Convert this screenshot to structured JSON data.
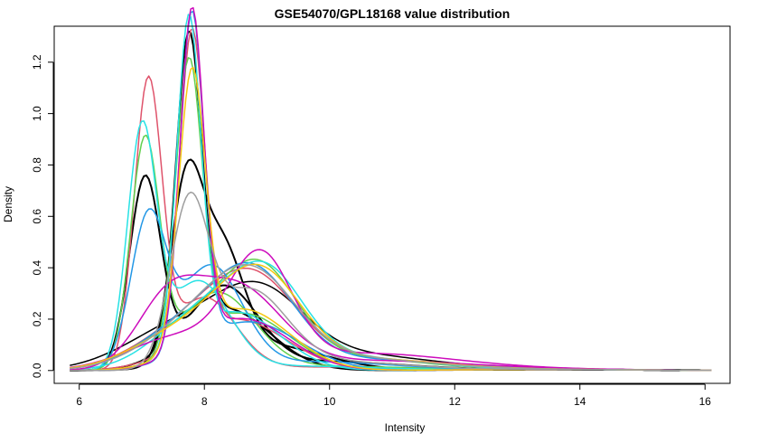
{
  "chart_data": {
    "type": "line",
    "title": "GSE54070/GPL18168 value distribution",
    "xlabel": "Intensity",
    "ylabel": "Density",
    "xlim": [
      5.6,
      16.4
    ],
    "ylim": [
      -0.05,
      1.34
    ],
    "xticks": [
      6,
      8,
      10,
      12,
      14,
      16
    ],
    "yticks": [
      0.0,
      0.2,
      0.4,
      0.6,
      0.8,
      1.0,
      1.2
    ],
    "x_range": [
      5.85,
      16.1
    ],
    "grid": false,
    "legend": "none",
    "palette": [
      "#000000",
      "#DF536B",
      "#61D04F",
      "#2297E6",
      "#28E2E5",
      "#CD0BBC",
      "#F5C710",
      "#9E9E9E"
    ],
    "series": [
      {
        "color": "#000000",
        "line_width": 2,
        "components": [
          {
            "w": 0.58,
            "mu": 7.75,
            "sd": 0.2
          },
          {
            "w": 0.42,
            "mu": 8.35,
            "sd": 0.7
          }
        ]
      },
      {
        "color": "#000000",
        "line_width": 2,
        "components": [
          {
            "w": 0.46,
            "mu": 7.05,
            "sd": 0.25
          },
          {
            "w": 0.44,
            "mu": 8.3,
            "sd": 0.55
          },
          {
            "w": 0.1,
            "mu": 10.0,
            "sd": 1.2
          }
        ]
      },
      {
        "color": "#000000",
        "line_width": 2,
        "components": [
          {
            "w": 0.4,
            "mu": 7.7,
            "sd": 0.25
          },
          {
            "w": 0.38,
            "mu": 8.25,
            "sd": 0.35
          },
          {
            "w": 0.22,
            "mu": 9.0,
            "sd": 0.9
          }
        ]
      },
      {
        "color": "#000000",
        "line_width": 1.5,
        "components": [
          {
            "w": 0.35,
            "mu": 7.6,
            "sd": 0.85
          },
          {
            "w": 0.45,
            "mu": 8.9,
            "sd": 0.7
          },
          {
            "w": 0.2,
            "mu": 10.3,
            "sd": 1.3
          }
        ]
      },
      {
        "color": "#DF536B",
        "line_width": 1.5,
        "components": [
          {
            "w": 0.6,
            "mu": 7.1,
            "sd": 0.22
          },
          {
            "w": 0.35,
            "mu": 8.0,
            "sd": 0.5
          },
          {
            "w": 0.05,
            "mu": 10.0,
            "sd": 1.5
          }
        ]
      },
      {
        "color": "#DF536B",
        "line_width": 1.5,
        "components": [
          {
            "w": 0.6,
            "mu": 7.8,
            "sd": 0.2
          },
          {
            "w": 0.4,
            "mu": 8.5,
            "sd": 0.8
          }
        ]
      },
      {
        "color": "#DF536B",
        "line_width": 1.5,
        "components": [
          {
            "w": 0.3,
            "mu": 7.7,
            "sd": 0.8
          },
          {
            "w": 0.55,
            "mu": 8.8,
            "sd": 0.7
          },
          {
            "w": 0.15,
            "mu": 10.5,
            "sd": 1.4
          }
        ]
      },
      {
        "color": "#61D04F",
        "line_width": 1.5,
        "components": [
          {
            "w": 0.5,
            "mu": 7.05,
            "sd": 0.23
          },
          {
            "w": 0.45,
            "mu": 8.2,
            "sd": 0.6
          },
          {
            "w": 0.05,
            "mu": 10.0,
            "sd": 1.3
          }
        ]
      },
      {
        "color": "#61D04F",
        "line_width": 1.5,
        "components": [
          {
            "w": 0.58,
            "mu": 7.75,
            "sd": 0.21
          },
          {
            "w": 0.42,
            "mu": 8.6,
            "sd": 0.75
          }
        ]
      },
      {
        "color": "#61D04F",
        "line_width": 1.5,
        "components": [
          {
            "w": 0.35,
            "mu": 7.8,
            "sd": 0.8
          },
          {
            "w": 0.5,
            "mu": 8.9,
            "sd": 0.6
          },
          {
            "w": 0.15,
            "mu": 10.2,
            "sd": 1.2
          }
        ]
      },
      {
        "color": "#2297E6",
        "line_width": 1.5,
        "components": [
          {
            "w": 0.4,
            "mu": 7.1,
            "sd": 0.28
          },
          {
            "w": 0.5,
            "mu": 8.1,
            "sd": 0.5
          },
          {
            "w": 0.1,
            "mu": 9.8,
            "sd": 1.2
          }
        ]
      },
      {
        "color": "#2297E6",
        "line_width": 1.5,
        "components": [
          {
            "w": 0.62,
            "mu": 7.8,
            "sd": 0.19
          },
          {
            "w": 0.38,
            "mu": 8.7,
            "sd": 0.8
          }
        ]
      },
      {
        "color": "#2297E6",
        "line_width": 1.5,
        "components": [
          {
            "w": 0.3,
            "mu": 7.7,
            "sd": 0.75
          },
          {
            "w": 0.55,
            "mu": 8.8,
            "sd": 0.65
          },
          {
            "w": 0.15,
            "mu": 10.4,
            "sd": 1.4
          }
        ]
      },
      {
        "color": "#28E2E5",
        "line_width": 1.5,
        "components": [
          {
            "w": 0.52,
            "mu": 7.0,
            "sd": 0.23
          },
          {
            "w": 0.43,
            "mu": 7.9,
            "sd": 0.5
          },
          {
            "w": 0.05,
            "mu": 9.5,
            "sd": 1.2
          }
        ]
      },
      {
        "color": "#28E2E5",
        "line_width": 1.5,
        "components": [
          {
            "w": 0.6,
            "mu": 7.75,
            "sd": 0.19
          },
          {
            "w": 0.4,
            "mu": 8.5,
            "sd": 0.7
          }
        ]
      },
      {
        "color": "#28E2E5",
        "line_width": 1.5,
        "components": [
          {
            "w": 0.35,
            "mu": 7.9,
            "sd": 0.7
          },
          {
            "w": 0.5,
            "mu": 9.0,
            "sd": 0.6
          },
          {
            "w": 0.15,
            "mu": 10.3,
            "sd": 1.2
          }
        ]
      },
      {
        "color": "#CD0BBC",
        "line_width": 1.5,
        "components": [
          {
            "w": 0.62,
            "mu": 7.8,
            "sd": 0.19
          },
          {
            "w": 0.38,
            "mu": 8.6,
            "sd": 0.75
          }
        ]
      },
      {
        "color": "#CD0BBC",
        "line_width": 1.5,
        "components": [
          {
            "w": 0.25,
            "mu": 7.6,
            "sd": 0.8
          },
          {
            "w": 0.5,
            "mu": 8.9,
            "sd": 0.5
          },
          {
            "w": 0.25,
            "mu": 10.5,
            "sd": 1.5
          }
        ]
      },
      {
        "color": "#CD0BBC",
        "line_width": 1.5,
        "components": [
          {
            "w": 0.3,
            "mu": 7.4,
            "sd": 0.5
          },
          {
            "w": 0.55,
            "mu": 8.5,
            "sd": 0.7
          },
          {
            "w": 0.15,
            "mu": 10.6,
            "sd": 1.6
          }
        ]
      },
      {
        "color": "#F5C710",
        "line_width": 1.5,
        "components": [
          {
            "w": 0.55,
            "mu": 7.8,
            "sd": 0.21
          },
          {
            "w": 0.45,
            "mu": 8.6,
            "sd": 0.75
          }
        ]
      },
      {
        "color": "#F5C710",
        "line_width": 1.5,
        "components": [
          {
            "w": 0.3,
            "mu": 7.7,
            "sd": 0.8
          },
          {
            "w": 0.55,
            "mu": 8.9,
            "sd": 0.65
          },
          {
            "w": 0.15,
            "mu": 10.4,
            "sd": 1.3
          }
        ]
      },
      {
        "color": "#9E9E9E",
        "line_width": 1.5,
        "components": [
          {
            "w": 0.3,
            "mu": 7.8,
            "sd": 0.8
          },
          {
            "w": 0.55,
            "mu": 8.8,
            "sd": 0.7
          },
          {
            "w": 0.15,
            "mu": 10.3,
            "sd": 1.3
          }
        ]
      },
      {
        "color": "#9E9E9E",
        "line_width": 1.5,
        "components": [
          {
            "w": 0.45,
            "mu": 7.75,
            "sd": 0.3
          },
          {
            "w": 0.45,
            "mu": 8.7,
            "sd": 0.6
          },
          {
            "w": 0.1,
            "mu": 10.0,
            "sd": 1.2
          }
        ]
      }
    ]
  }
}
